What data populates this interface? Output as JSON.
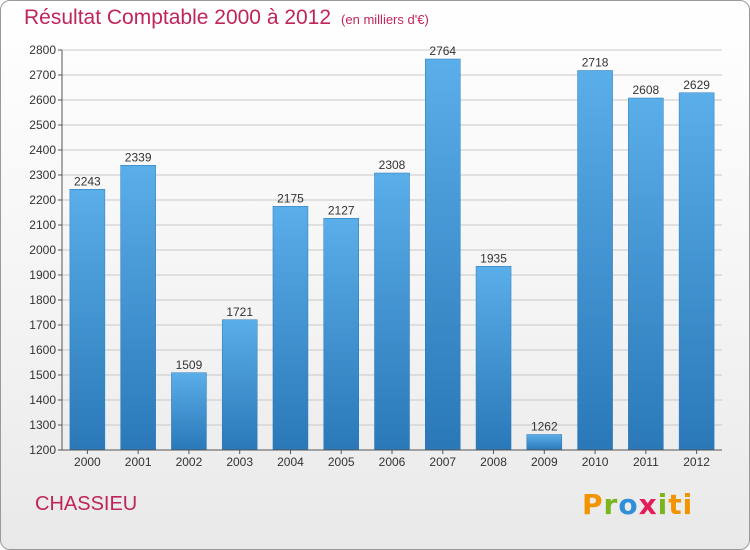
{
  "title": "Résultat Comptable 2000 à 2012",
  "unit_label": "(en milliers d'€)",
  "city": "CHASSIEU",
  "logo": {
    "text": "Proxiti",
    "colors": [
      "#f29400",
      "#7ab51d",
      "#2f8fd8",
      "#e31e58",
      "#7ab51d",
      "#f29400"
    ]
  },
  "colors": {
    "bar": "#4a9fe0",
    "bar_dark": "#2a78b8",
    "title": "#c0245c",
    "grid": "#c8c8c8"
  },
  "chart_data": {
    "type": "bar",
    "categories": [
      "2000",
      "2001",
      "2002",
      "2003",
      "2004",
      "2005",
      "2006",
      "2007",
      "2008",
      "2009",
      "2010",
      "2011",
      "2012"
    ],
    "values": [
      2243,
      2339,
      1509,
      1721,
      2175,
      2127,
      2308,
      2764,
      1935,
      1262,
      2718,
      2608,
      2629
    ],
    "ylim": [
      1200,
      2800
    ],
    "yticks": [
      1200,
      1300,
      1400,
      1500,
      1600,
      1700,
      1800,
      1900,
      2000,
      2100,
      2200,
      2300,
      2400,
      2500,
      2600,
      2700,
      2800
    ],
    "grid": true,
    "data_labels": true
  }
}
